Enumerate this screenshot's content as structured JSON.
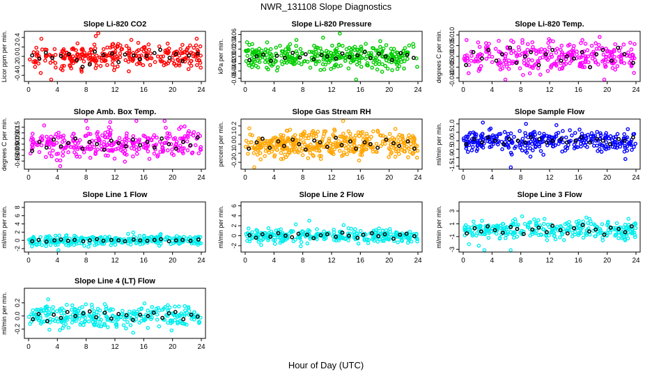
{
  "title": "NWR_131108  Slope Diagnostics",
  "x_caption": "Hour of Day (UTC)",
  "chart_data": [
    {
      "type": "scatter",
      "title": "Slope Li-820 CO2",
      "ylabel": "Licor ppm per min.",
      "xlim": [
        0,
        24
      ],
      "xticks": [
        0,
        4,
        8,
        12,
        16,
        20,
        24
      ],
      "ylim": [
        -0.5,
        0.5
      ],
      "yticks": [
        -0.4,
        -0.2,
        0.0,
        0.2,
        0.4
      ],
      "ytick_labels": [
        "-0.4",
        "-0.2",
        "0.0",
        "0.2",
        "0.4"
      ],
      "color": "#ff0000",
      "spread": 0.13,
      "n": 300,
      "seed": 11,
      "series": [
        {
          "x": [
            0.5,
            1.5,
            2.4,
            3.3,
            4.5,
            5.6,
            6.7,
            7.5,
            8.5,
            9.2,
            10.4,
            11.6,
            12.5,
            13.4,
            14.6,
            15.5,
            16.4,
            17.5,
            18.3,
            19.6,
            20.5,
            21.4,
            22.3,
            23.5
          ],
          "y": [
            0.02,
            -0.05,
            0.08,
            -0.03,
            0.01,
            0.05,
            -0.08,
            -0.22,
            -0.17,
            0.1,
            0.03,
            0.06,
            -0.12,
            0.04,
            0.02,
            -0.06,
            0.01,
            0.07,
            0.14,
            -0.03,
            0.05,
            -0.1,
            0.02,
            0.06
          ]
        }
      ]
    },
    {
      "type": "scatter",
      "title": "Slope Li-820 Pressure",
      "ylabel": "kPa per min.",
      "xlim": [
        0,
        24
      ],
      "xticks": [
        0,
        4,
        8,
        12,
        16,
        20,
        24
      ],
      "ylim": [
        -0.065,
        0.065
      ],
      "yticks": [
        -0.06,
        -0.04,
        -0.02,
        0.0,
        0.02,
        0.04,
        0.06
      ],
      "ytick_labels": [
        "-0.06",
        "-0.04",
        "-0.02",
        "0.00",
        "0.02",
        "0.04",
        "0.06"
      ],
      "color": "#00cc00",
      "spread": 0.017,
      "n": 340,
      "seed": 23,
      "series": [
        {
          "x": [
            0.6,
            1.6,
            2.5,
            3.6,
            4.4,
            5.5,
            6.6,
            7.6,
            8.4,
            9.5,
            10.6,
            11.4,
            12.6,
            13.5,
            14.5,
            15.6,
            16.6,
            17.4,
            18.6,
            19.5,
            20.4,
            21.6,
            22.5,
            23.4
          ],
          "y": [
            -0.01,
            0.0,
            0.005,
            -0.012,
            0.002,
            -0.004,
            0.01,
            -0.003,
            0.006,
            -0.008,
            0.004,
            0.0,
            -0.006,
            0.008,
            -0.002,
            0.003,
            0.012,
            -0.005,
            0.007,
            0.0,
            -0.01,
            0.009,
            0.004,
            -0.004
          ]
        }
      ]
    },
    {
      "type": "scatter",
      "title": "Slope Li-820 Temp.",
      "ylabel": "degrees C per min.",
      "xlim": [
        0,
        24
      ],
      "xticks": [
        0,
        4,
        8,
        12,
        16,
        20,
        24
      ],
      "ylim": [
        -0.011,
        0.011
      ],
      "yticks": [
        -0.01,
        -0.005,
        0.0,
        0.005,
        0.01
      ],
      "ytick_labels": [
        "-0.010",
        "-0.005",
        "0.000",
        "0.005",
        "0.010"
      ],
      "color": "#ff00ff",
      "spread": 0.0035,
      "n": 300,
      "seed": 37,
      "series": [
        {
          "x": [
            0.4,
            1.4,
            2.6,
            3.5,
            4.6,
            5.4,
            6.5,
            7.4,
            8.6,
            9.4,
            10.5,
            11.5,
            12.4,
            13.6,
            14.4,
            15.4,
            16.5,
            17.6,
            18.5,
            19.4,
            20.6,
            21.5,
            22.4,
            23.6
          ],
          "y": [
            -0.004,
            0.002,
            -0.001,
            0.003,
            -0.002,
            0.001,
            0.004,
            -0.003,
            0.0,
            0.002,
            -0.004,
            0.001,
            0.003,
            -0.002,
            0.0,
            -0.001,
            0.002,
            -0.005,
            0.001,
            0.003,
            -0.002,
            0.004,
            0.001,
            -0.003
          ]
        }
      ]
    },
    {
      "type": "scatter",
      "title": "Slope Amb. Box Temp.",
      "ylabel": "degrees C per min.",
      "xlim": [
        0,
        24
      ],
      "xticks": [
        0,
        4,
        8,
        12,
        16,
        20,
        24
      ],
      "ylim": [
        -0.21,
        0.21
      ],
      "yticks": [
        -0.15,
        -0.1,
        -0.05,
        0.0,
        0.05,
        0.1,
        0.15
      ],
      "ytick_labels": [
        "-0.15",
        "-0.10",
        "-0.05",
        "0.00",
        "0.05",
        "0.10",
        "0.15"
      ],
      "color": "#ff00ff",
      "spread": 0.06,
      "n": 300,
      "seed": 41,
      "series": [
        {
          "x": [
            0.5,
            1.5,
            2.5,
            3.5,
            4.5,
            5.5,
            6.5,
            7.5,
            8.5,
            9.5,
            10.5,
            11.5,
            12.5,
            13.5,
            14.5,
            15.5,
            16.5,
            17.5,
            18.5,
            19.5,
            20.5,
            21.5,
            22.5,
            23.5
          ],
          "y": [
            -0.06,
            0.02,
            -0.03,
            0.04,
            -0.02,
            0.01,
            0.05,
            -0.04,
            0.02,
            0.0,
            -0.05,
            0.03,
            0.01,
            -0.02,
            0.04,
            -0.01,
            0.02,
            -0.03,
            0.05,
            0.0,
            -0.04,
            0.02,
            -0.01,
            0.06
          ]
        }
      ]
    },
    {
      "type": "scatter",
      "title": "Slope Gas Stream RH",
      "ylabel": "percent per min.",
      "xlim": [
        0,
        24
      ],
      "xticks": [
        0,
        4,
        8,
        12,
        16,
        20,
        24
      ],
      "ylim": [
        -0.26,
        0.26
      ],
      "yticks": [
        -0.2,
        -0.1,
        0.0,
        0.1,
        0.2
      ],
      "ytick_labels": [
        "-0.2",
        "-0.1",
        "0.0",
        "0.1",
        "0.2"
      ],
      "color": "#ffa500",
      "spread": 0.07,
      "n": 420,
      "seed": 53,
      "series": [
        {
          "x": [
            0.5,
            1.6,
            2.4,
            3.4,
            4.6,
            5.4,
            6.6,
            7.5,
            8.4,
            9.6,
            10.4,
            11.4,
            12.6,
            13.4,
            14.6,
            15.4,
            16.6,
            17.4,
            18.4,
            19.6,
            20.6,
            21.4,
            22.6,
            23.5
          ],
          "y": [
            -0.05,
            0.02,
            0.06,
            -0.04,
            0.03,
            -0.02,
            0.05,
            0.0,
            -0.06,
            0.04,
            0.02,
            -0.03,
            0.07,
            -0.01,
            0.03,
            -0.05,
            0.02,
            0.0,
            -0.04,
            0.05,
            0.01,
            -0.02,
            0.03,
            -0.05
          ]
        }
      ]
    },
    {
      "type": "scatter",
      "title": "Slope Sample Flow",
      "ylabel": "ml/min per min.",
      "xlim": [
        0,
        24
      ],
      "xticks": [
        0,
        4,
        8,
        12,
        16,
        20,
        24
      ],
      "ylim": [
        -1.6,
        1.2
      ],
      "yticks": [
        -1.5,
        -1.0,
        -0.5,
        0.0,
        0.5,
        1.0
      ],
      "ytick_labels": [
        "-1.5",
        "-1.0",
        "-0.5",
        "0.0",
        "0.5",
        "1.0"
      ],
      "color": "#0000ff",
      "spread": 0.28,
      "n": 320,
      "seed": 67,
      "series": [
        {
          "x": [
            0.4,
            1.5,
            2.6,
            3.4,
            4.4,
            5.6,
            6.4,
            7.6,
            8.6,
            9.4,
            10.6,
            11.6,
            12.4,
            13.6,
            14.4,
            15.6,
            16.4,
            17.6,
            18.6,
            19.4,
            20.4,
            21.6,
            22.4,
            23.6
          ],
          "y": [
            -0.2,
            0.1,
            -0.1,
            0.2,
            0.0,
            -0.2,
            0.1,
            0.0,
            -0.1,
            0.2,
            0.1,
            -0.1,
            0.0,
            0.1,
            -0.1,
            0.0,
            0.2,
            -0.1,
            0.1,
            0.0,
            -0.2,
            0.1,
            0.0,
            0.2
          ]
        }
      ]
    },
    {
      "type": "scatter",
      "title": "Slope Line 1 Flow",
      "ylabel": "ml/min per min.",
      "xlim": [
        0,
        24
      ],
      "xticks": [
        0,
        4,
        8,
        12,
        16,
        20,
        24
      ],
      "ylim": [
        -2.5,
        9
      ],
      "yticks": [
        -2,
        0,
        2,
        4,
        6,
        8
      ],
      "ytick_labels": [
        "-2",
        "0",
        "2",
        "4",
        "6",
        "8"
      ],
      "color": "#00eeee",
      "spread": 0.55,
      "n": 300,
      "seed": 71,
      "series": [
        {
          "x": [
            0.5,
            1.4,
            2.5,
            3.6,
            4.5,
            5.5,
            6.4,
            7.6,
            8.5,
            9.5,
            10.4,
            11.5,
            12.5,
            13.4,
            14.6,
            15.5,
            16.5,
            17.5,
            18.4,
            19.5,
            20.5,
            21.4,
            22.5,
            23.6
          ],
          "y": [
            -0.2,
            0.1,
            -0.3,
            0.0,
            0.2,
            -0.1,
            0.1,
            -0.2,
            0.0,
            0.3,
            -0.1,
            0.1,
            0.0,
            -0.2,
            0.2,
            0.0,
            -0.1,
            0.1,
            0.3,
            -0.2,
            0.0,
            0.1,
            -0.1,
            0.2
          ]
        }
      ]
    },
    {
      "type": "scatter",
      "title": "Slope Line 2 Flow",
      "ylabel": "ml/min per min.",
      "xlim": [
        0,
        24
      ],
      "xticks": [
        0,
        4,
        8,
        12,
        16,
        20,
        24
      ],
      "ylim": [
        -3,
        6.5
      ],
      "yticks": [
        -2,
        0,
        2,
        4,
        6
      ],
      "ytick_labels": [
        "-2",
        "0",
        "2",
        "4",
        "6"
      ],
      "color": "#00eeee",
      "spread": 0.65,
      "n": 300,
      "seed": 83,
      "series": [
        {
          "x": [
            0.6,
            1.5,
            2.4,
            3.5,
            4.6,
            5.6,
            6.5,
            7.4,
            8.6,
            9.5,
            10.5,
            11.4,
            12.6,
            13.5,
            14.4,
            15.6,
            16.4,
            17.6,
            18.5,
            19.4,
            20.6,
            21.5,
            22.4,
            23.5
          ],
          "y": [
            0.1,
            -0.4,
            0.3,
            -0.2,
            0.5,
            0.0,
            -0.3,
            0.4,
            0.2,
            -0.5,
            0.1,
            0.3,
            -0.2,
            0.6,
            0.0,
            -0.4,
            0.2,
            0.5,
            -0.1,
            0.3,
            -0.6,
            0.2,
            0.4,
            -0.1
          ]
        }
      ]
    },
    {
      "type": "scatter",
      "title": "Slope Line 3 Flow",
      "ylabel": "ml/min per min.",
      "xlim": [
        0,
        24
      ],
      "xticks": [
        0,
        4,
        8,
        12,
        16,
        20,
        24
      ],
      "ylim": [
        -3.2,
        4.2
      ],
      "yticks": [
        -3,
        -1,
        1,
        3
      ],
      "ytick_labels": [
        "-3",
        "-1",
        "1",
        "3"
      ],
      "color": "#00eeee",
      "spread": 0.75,
      "n": 300,
      "seed": 97,
      "series": [
        {
          "x": [
            0.5,
            1.6,
            2.5,
            3.4,
            4.4,
            5.5,
            6.6,
            7.5,
            8.4,
            9.6,
            10.5,
            11.6,
            12.4,
            13.5,
            14.5,
            15.4,
            16.6,
            17.5,
            18.4,
            19.6,
            20.5,
            21.6,
            22.5,
            23.4
          ],
          "y": [
            -0.5,
            0.3,
            -0.2,
            0.6,
            0.0,
            -0.4,
            0.5,
            0.2,
            -0.6,
            0.1,
            0.4,
            -0.3,
            0.7,
            0.0,
            -0.5,
            0.3,
            0.8,
            -0.2,
            0.1,
            -0.7,
            0.4,
            0.2,
            -0.3,
            0.6
          ]
        }
      ]
    },
    {
      "type": "scatter",
      "title": "Slope Line 4 (LT) Flow",
      "ylabel": "ml/min per min.",
      "xlim": [
        0,
        24
      ],
      "xticks": [
        0,
        4,
        8,
        12,
        16,
        20,
        24
      ],
      "ylim": [
        -0.32,
        0.4
      ],
      "yticks": [
        -0.2,
        0.0,
        0.2
      ],
      "ytick_labels": [
        "-0.2",
        "0.0",
        "0.2"
      ],
      "color": "#00eeee",
      "spread": 0.085,
      "n": 300,
      "seed": 101,
      "series": [
        {
          "x": [
            0.6,
            1.4,
            2.6,
            3.5,
            4.5,
            5.4,
            6.5,
            7.6,
            8.5,
            9.4,
            10.6,
            11.5,
            12.5,
            13.6,
            14.5,
            15.5,
            16.6,
            17.4,
            18.6,
            19.5,
            20.4,
            21.5,
            22.6,
            23.5
          ],
          "y": [
            -0.05,
            0.03,
            -0.08,
            0.02,
            -0.03,
            0.06,
            0.0,
            0.04,
            0.07,
            -0.02,
            0.05,
            -0.04,
            0.03,
            0.01,
            -0.06,
            0.02,
            0.0,
            0.05,
            -0.03,
            0.04,
            0.06,
            -0.05,
            0.02,
            -0.01
          ]
        }
      ]
    }
  ]
}
